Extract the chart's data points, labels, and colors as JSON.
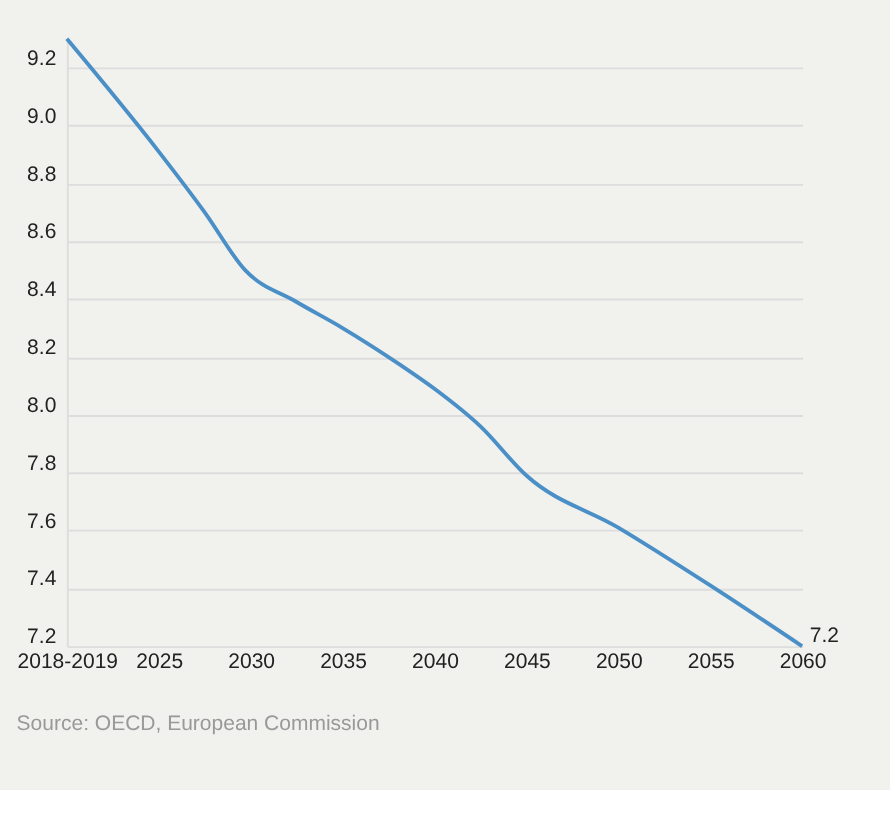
{
  "chart_data": {
    "type": "line",
    "x": [
      2020,
      2025,
      2027.5,
      2029.7,
      2032.5,
      2035,
      2038.2,
      2040,
      2042.5,
      2045,
      2050,
      2055,
      2060
    ],
    "series": [
      {
        "color": "#4a8fc6",
        "values": [
          9.3,
          8.91,
          8.7,
          8.5,
          8.39,
          8.3,
          8.17,
          8.09,
          7.96,
          7.79,
          7.61,
          7.41,
          7.2
        ]
      }
    ],
    "xlim": [
      2020,
      2060
    ],
    "xticks": [
      {
        "value": 2020,
        "label": "2018-2019"
      },
      2025,
      2030,
      2035,
      2040,
      2045,
      2050,
      2055,
      2060
    ],
    "ylim": [
      7.2,
      9.3
    ],
    "yticks": [
      7.2,
      7.4,
      7.6,
      7.8,
      {
        "value": 8,
        "label": "8.0"
      },
      8.2,
      8.4,
      8.6,
      8.8,
      {
        "value": 9,
        "label": "9.0"
      },
      9.2
    ],
    "grid": "y",
    "annotations": [
      {
        "text": "7.2",
        "x": 2060,
        "y": 7.2
      },
      "Source: OECD, European Commission"
    ]
  }
}
